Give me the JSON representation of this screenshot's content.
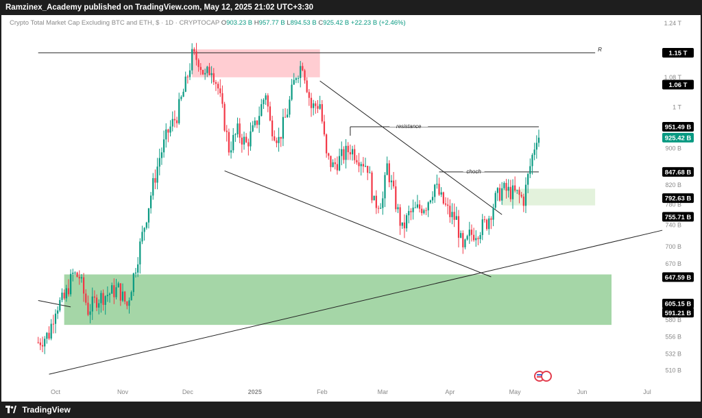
{
  "header": {
    "publisher_line": "Ramzinex_Academy published on TradingView.com, May 12, 2025 21:02 UTC+3:30"
  },
  "footer": {
    "brand": "TradingView"
  },
  "legend": {
    "symbol": "Crypto Total Market Cap Excluding BTC and ETH, $ · 1D · CRYPTOCAP",
    "open_key": "O",
    "open": "903.23 B",
    "high_key": "H",
    "high": "957.77 B",
    "low_key": "L",
    "low": "894.53 B",
    "close_key": "C",
    "close": "925.42 B",
    "change": "+22.23 B (+2.46%)"
  },
  "colors": {
    "up": "#089981",
    "down": "#f23645",
    "supply_zone": "#ffcdd2",
    "demand_zone": "#a5d6a7",
    "small_zone": "#e3f2dc",
    "tag_dark": "#000000",
    "tag_price": "#089981"
  },
  "chart_data": {
    "type": "candlestick",
    "title": "Crypto Total Market Cap Excluding BTC and ETH, $ · 1D · CRYPTOCAP",
    "y_scale": "log",
    "ylim": [
      496,
      1290
    ],
    "x_ticks": [
      "Oct",
      "Nov",
      "Dec",
      "2025",
      "Feb",
      "Mar",
      "Apr",
      "May",
      "Jun",
      "Jul"
    ],
    "y_ticks": [
      "1.24 T",
      "1.15 T",
      "1.08 T",
      "1.06 T",
      "1 T",
      "951.49 B",
      "925.42 B",
      "900 B",
      "847.68 B",
      "820 B",
      "792.63 B",
      "780 B",
      "755.71 B",
      "740 B",
      "700 B",
      "670 B",
      "647.59 B",
      "605.15 B",
      "591.21 B",
      "580 B",
      "556 B",
      "532 B",
      "510 B"
    ],
    "price_tags": [
      {
        "label": "1.15 T",
        "value": 1150,
        "style": "dark"
      },
      {
        "label": "1.06 T",
        "value": 1060,
        "style": "dark"
      },
      {
        "label": "951.49 B",
        "value": 951.49,
        "style": "dark"
      },
      {
        "label": "925.42 B",
        "value": 925.42,
        "style": "price"
      },
      {
        "label": "847.68 B",
        "value": 847.68,
        "style": "dark"
      },
      {
        "label": "792.63 B",
        "value": 792.63,
        "style": "dark"
      },
      {
        "label": "755.71 B",
        "value": 755.71,
        "style": "dark"
      },
      {
        "label": "647.59 B",
        "value": 647.59,
        "style": "dark"
      },
      {
        "label": "605.15 B",
        "value": 605.15,
        "style": "dark"
      },
      {
        "label": "591.21 B",
        "value": 591.21,
        "style": "dark"
      }
    ],
    "annotations": [
      {
        "text": "R",
        "y": 1150
      },
      {
        "text": "resistance",
        "y": 951.49
      },
      {
        "text": "choch",
        "y": 847.68
      }
    ],
    "series": [
      {
        "name": "daily",
        "path": [
          [
            "2024-09-23",
            548
          ],
          [
            "2024-09-28",
            560
          ],
          [
            "2024-10-01",
            600
          ],
          [
            "2024-10-05",
            612
          ],
          [
            "2024-10-09",
            652
          ],
          [
            "2024-10-12",
            648
          ],
          [
            "2024-10-16",
            595
          ],
          [
            "2024-10-20",
            612
          ],
          [
            "2024-10-25",
            620
          ],
          [
            "2024-10-30",
            628
          ],
          [
            "2024-11-03",
            602
          ],
          [
            "2024-11-06",
            650
          ],
          [
            "2024-11-10",
            720
          ],
          [
            "2024-11-14",
            800
          ],
          [
            "2024-11-18",
            880
          ],
          [
            "2024-11-22",
            940
          ],
          [
            "2024-11-26",
            980
          ],
          [
            "2024-11-30",
            1060
          ],
          [
            "2024-12-03",
            1140
          ],
          [
            "2024-12-06",
            1130
          ],
          [
            "2024-12-09",
            1080
          ],
          [
            "2024-12-12",
            1110
          ],
          [
            "2024-12-15",
            1050
          ],
          [
            "2024-12-18",
            960
          ],
          [
            "2024-12-20",
            900
          ],
          [
            "2024-12-24",
            940
          ],
          [
            "2024-12-28",
            910
          ],
          [
            "2025-01-01",
            950
          ],
          [
            "2025-01-06",
            1040
          ],
          [
            "2025-01-08",
            960
          ],
          [
            "2025-01-12",
            920
          ],
          [
            "2025-01-16",
            990
          ],
          [
            "2025-01-20",
            1090
          ],
          [
            "2025-01-23",
            1120
          ],
          [
            "2025-01-27",
            1000
          ],
          [
            "2025-01-31",
            1010
          ],
          [
            "2025-02-03",
            880
          ],
          [
            "2025-02-06",
            860
          ],
          [
            "2025-02-10",
            880
          ],
          [
            "2025-02-14",
            900
          ],
          [
            "2025-02-18",
            880
          ],
          [
            "2025-02-22",
            860
          ],
          [
            "2025-02-25",
            780
          ],
          [
            "2025-03-01",
            790
          ],
          [
            "2025-03-03",
            860
          ],
          [
            "2025-03-06",
            800
          ],
          [
            "2025-03-10",
            730
          ],
          [
            "2025-03-13",
            760
          ],
          [
            "2025-03-17",
            770
          ],
          [
            "2025-03-21",
            780
          ],
          [
            "2025-03-25",
            820
          ],
          [
            "2025-03-28",
            790
          ],
          [
            "2025-04-01",
            760
          ],
          [
            "2025-04-04",
            750
          ],
          [
            "2025-04-07",
            690
          ],
          [
            "2025-04-10",
            720
          ],
          [
            "2025-04-14",
            730
          ],
          [
            "2025-04-18",
            745
          ],
          [
            "2025-04-22",
            790
          ],
          [
            "2025-04-25",
            810
          ],
          [
            "2025-04-29",
            805
          ],
          [
            "2025-05-02",
            800
          ],
          [
            "2025-05-05",
            790
          ],
          [
            "2025-05-08",
            860
          ],
          [
            "2025-05-11",
            930
          ],
          [
            "2025-05-12",
            925.42
          ]
        ]
      }
    ],
    "zones": [
      {
        "name": "supply",
        "x0": "2024-12-03",
        "x1": "2025-01-31",
        "y0": 1080,
        "y1": 1160,
        "color": "supply_zone"
      },
      {
        "name": "demand",
        "x0": "2024-10-05",
        "x1": "2025-06-15",
        "y0": 573,
        "y1": 652,
        "color": "demand_zone"
      },
      {
        "name": "retest",
        "x0": "2025-04-25",
        "x1": "2025-06-07",
        "y0": 778,
        "y1": 812,
        "color": "small_zone"
      }
    ],
    "lines": [
      {
        "name": "resistance-R",
        "p1": [
          "2024-09-23",
          1150
        ],
        "p2": [
          "2025-06-07",
          1150
        ]
      },
      {
        "name": "downtrend-upper",
        "p1": [
          "2025-01-31",
          1070
        ],
        "p2": [
          "2025-04-25",
          760
        ]
      },
      {
        "name": "downtrend-lower",
        "p1": [
          "2024-12-18",
          850
        ],
        "p2": [
          "2025-04-20",
          648
        ]
      },
      {
        "name": "long-uptrend",
        "p1": [
          "2024-09-28",
          505
        ],
        "p2": [
          "2025-07-08",
          730
        ]
      },
      {
        "name": "old-trend",
        "p1": [
          "2024-09-23",
          610
        ],
        "p2": [
          "2024-10-08",
          600
        ]
      },
      {
        "name": "resistance",
        "p1": [
          "2025-02-14",
          951.49
        ],
        "p2": [
          "2025-05-12",
          951.49
        ]
      },
      {
        "name": "choch",
        "p1": [
          "2025-03-27",
          847.68
        ],
        "p2": [
          "2025-05-12",
          847.68
        ]
      },
      {
        "name": "first-peak-mark",
        "p1": [
          "2025-02-14",
          951.49
        ],
        "p2": [
          "2025-02-14",
          930
        ]
      }
    ]
  }
}
